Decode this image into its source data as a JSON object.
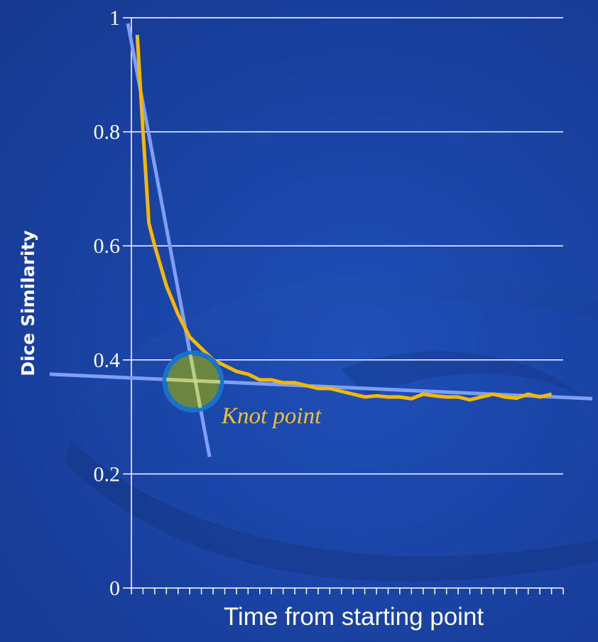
{
  "chart_data": {
    "type": "line",
    "title": "",
    "xlabel": "Time from starting point",
    "ylabel": "Dice Similarity",
    "ylim": [
      0,
      1
    ],
    "yticks": [
      "0",
      "0.2",
      "0.4",
      "0.6",
      "0.8",
      "1"
    ],
    "xlim": [
      0,
      37
    ],
    "x_tick_count": 37,
    "grid": true,
    "series": [
      {
        "color": "#f5b800",
        "x": [
          0.5,
          1,
          1.5,
          2,
          3,
          4,
          5,
          6,
          7,
          8,
          9,
          10,
          11,
          12,
          13,
          14,
          15,
          16,
          17,
          18,
          19,
          20,
          21,
          22,
          23,
          24,
          25,
          26,
          27,
          28,
          29,
          30,
          31,
          32,
          33,
          34,
          35,
          36
        ],
        "values": [
          0.97,
          0.8,
          0.64,
          0.6,
          0.53,
          0.48,
          0.44,
          0.42,
          0.4,
          0.39,
          0.38,
          0.375,
          0.365,
          0.365,
          0.36,
          0.36,
          0.355,
          0.35,
          0.35,
          0.345,
          0.34,
          0.335,
          0.337,
          0.335,
          0.335,
          0.332,
          0.34,
          0.337,
          0.335,
          0.335,
          0.33,
          0.335,
          0.34,
          0.335,
          0.333,
          0.34,
          0.335,
          0.34
        ]
      }
    ],
    "fit_lines": [
      {
        "color": "#7e9ff5",
        "x": [
          -0.3,
          6.7
        ],
        "values": [
          0.99,
          0.23
        ]
      },
      {
        "color": "#7e9ff5",
        "x": [
          -7,
          39.5
        ],
        "values": [
          0.375,
          0.332
        ]
      }
    ],
    "knot": {
      "x": 5.3,
      "y": 0.362,
      "label": "Knot point",
      "fill": "#6e8a3c",
      "stroke": "#1a74c9"
    }
  }
}
